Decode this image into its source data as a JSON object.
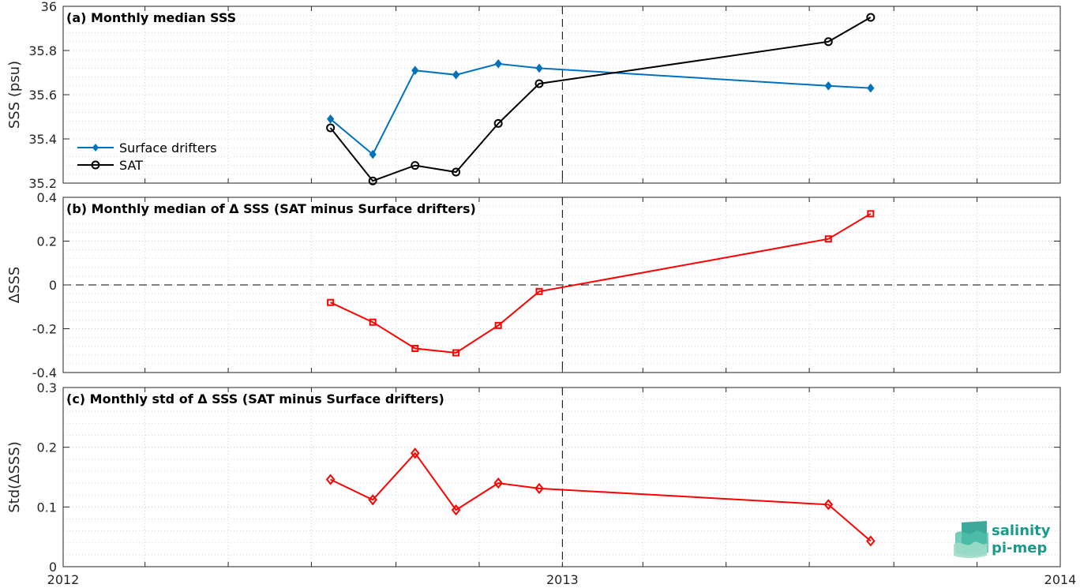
{
  "chart_data": [
    {
      "type": "line",
      "title": "(a) Monthly median SSS",
      "ylabel": "SSS (psu)",
      "ylim": [
        35.2,
        36
      ],
      "yticks": [
        35.2,
        35.4,
        35.6,
        35.8,
        36
      ],
      "ytick_labels": [
        "35.2",
        "35.4",
        "35.6",
        "35.8",
        "36"
      ],
      "grid": true,
      "legend": {
        "position": "left",
        "entries": [
          "Surface drifters",
          "SAT"
        ]
      },
      "colors": {
        "Surface drifters": "#0072bd",
        "SAT": "#000000"
      },
      "markers": {
        "Surface drifters": "diamond-filled",
        "SAT": "circle-open"
      },
      "series": [
        {
          "name": "Surface drifters",
          "x": [
            "2012-07-15",
            "2012-08-15",
            "2012-09-15",
            "2012-10-15",
            "2012-11-15",
            "2012-12-15",
            "2013-07-15",
            "2013-08-15"
          ],
          "values": [
            35.49,
            35.33,
            35.71,
            35.69,
            35.74,
            35.72,
            35.64,
            35.63
          ]
        },
        {
          "name": "SAT",
          "x": [
            "2012-07-15",
            "2012-08-15",
            "2012-09-15",
            "2012-10-15",
            "2012-11-15",
            "2012-12-15",
            "2013-07-15",
            "2013-08-15"
          ],
          "values": [
            35.45,
            35.21,
            35.28,
            35.25,
            35.47,
            35.65,
            35.84,
            35.95
          ]
        }
      ]
    },
    {
      "type": "line",
      "title": "(b) Monthly median of Δ SSS (SAT minus Surface drifters)",
      "ylabel": "ΔSSS",
      "ylim": [
        -0.4,
        0.4
      ],
      "yticks": [
        -0.4,
        -0.2,
        0,
        0.2,
        0.4
      ],
      "ytick_labels": [
        "-0.4",
        "-0.2",
        "0",
        "0.2",
        "0.4"
      ],
      "grid": true,
      "reference_line": 0,
      "colors": {
        "series": "#ff0000"
      },
      "markers": {
        "series": "square-open"
      },
      "series": [
        {
          "x": [
            "2012-07-15",
            "2012-08-15",
            "2012-09-15",
            "2012-10-15",
            "2012-11-15",
            "2012-12-15",
            "2013-07-15",
            "2013-08-15"
          ],
          "values": [
            -0.08,
            -0.17,
            -0.29,
            -0.31,
            -0.185,
            -0.03,
            0.21,
            0.325
          ]
        }
      ]
    },
    {
      "type": "line",
      "title": "(c) Monthly std of Δ SSS (SAT minus Surface drifters)",
      "ylabel": "Std(ΔSSS)",
      "ylim": [
        0,
        0.3
      ],
      "yticks": [
        0,
        0.1,
        0.2,
        0.3
      ],
      "ytick_labels": [
        "0",
        "0.1",
        "0.2",
        "0.3"
      ],
      "grid": true,
      "colors": {
        "series": "#ff0000"
      },
      "markers": {
        "series": "diamond-open"
      },
      "series": [
        {
          "x": [
            "2012-07-15",
            "2012-08-15",
            "2012-09-15",
            "2012-10-15",
            "2012-11-15",
            "2012-12-15",
            "2013-07-15",
            "2013-08-15"
          ],
          "values": [
            0.146,
            0.112,
            0.19,
            0.095,
            0.14,
            0.131,
            0.104,
            0.043
          ]
        }
      ]
    }
  ],
  "x_axis": {
    "xlim": [
      "2012-01-01",
      "2014-01-01"
    ],
    "tick_labels": [
      "2012",
      "2013",
      "2014"
    ],
    "vertical_marker": "2013-01-01"
  },
  "logo": {
    "line1": "salinity",
    "line2": "pi-mep",
    "color": "#1a9a8a"
  }
}
